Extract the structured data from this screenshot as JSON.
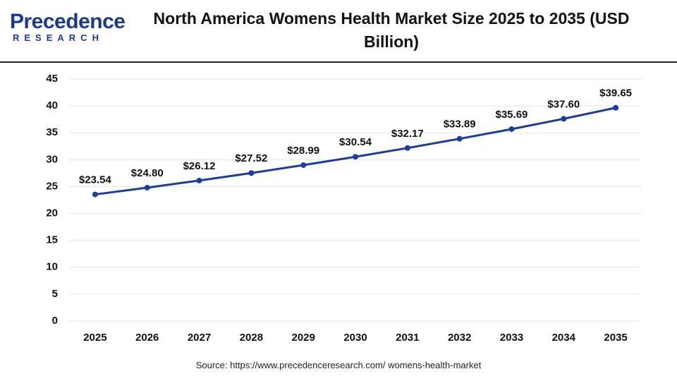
{
  "logo": {
    "name": "Precedence",
    "sub": "RESEARCH"
  },
  "chart_data": {
    "type": "line",
    "title": "North America Womens Health Market Size 2025 to 2035 (USD Billion)",
    "categories": [
      "2025",
      "2026",
      "2027",
      "2028",
      "2029",
      "2030",
      "2031",
      "2032",
      "2033",
      "2034",
      "2035"
    ],
    "values": [
      23.54,
      24.8,
      26.12,
      27.52,
      28.99,
      30.54,
      32.17,
      33.89,
      35.69,
      37.6,
      39.65
    ],
    "value_labels": [
      "$23.54",
      "$24.80",
      "$26.12",
      "$27.52",
      "$28.99",
      "$30.54",
      "$32.17",
      "$33.89",
      "$35.69",
      "$37.60",
      "$39.65"
    ],
    "color": "#1f3c96",
    "ylim": [
      0,
      45
    ],
    "yticks": [
      0,
      5,
      10,
      15,
      20,
      25,
      30,
      35,
      40,
      45
    ],
    "grid": true,
    "source": "Source: https://www.precedenceresearch.com/ womens-health-market"
  }
}
